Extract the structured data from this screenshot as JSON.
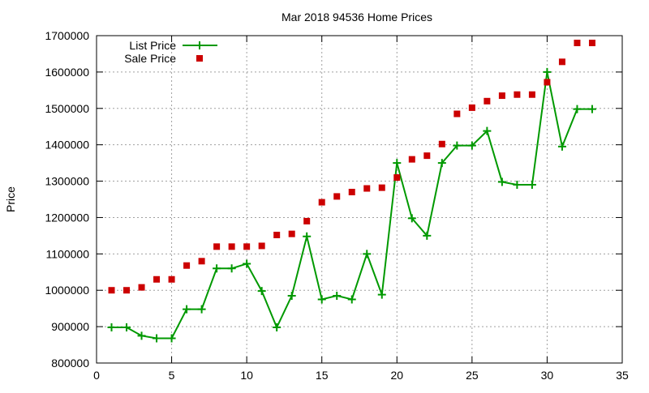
{
  "chart_data": {
    "type": "line",
    "title": "Mar 2018 94536 Home Prices",
    "xlabel": "",
    "ylabel": "Price",
    "xlim": [
      0,
      35
    ],
    "ylim": [
      800000,
      1700000
    ],
    "x_ticks": [
      0,
      5,
      10,
      15,
      20,
      25,
      30,
      35
    ],
    "y_ticks": [
      800000,
      900000,
      1000000,
      1100000,
      1200000,
      1300000,
      1400000,
      1500000,
      1600000,
      1700000
    ],
    "grid": true,
    "legend_position": "top-left",
    "series": [
      {
        "name": "List Price",
        "style": "line-plus",
        "color": "#009900",
        "x": [
          1,
          2,
          3,
          4,
          5,
          6,
          7,
          8,
          9,
          10,
          11,
          12,
          13,
          14,
          15,
          16,
          17,
          18,
          19,
          20,
          21,
          22,
          23,
          24,
          25,
          26,
          27,
          28,
          29,
          30,
          31,
          32,
          33
        ],
        "values": [
          898000,
          898000,
          875000,
          868000,
          868000,
          948000,
          948000,
          1060000,
          1060000,
          1073000,
          998000,
          898000,
          985000,
          1148000,
          975000,
          985000,
          975000,
          1100000,
          988000,
          1350000,
          1198000,
          1150000,
          1350000,
          1398000,
          1398000,
          1438000,
          1298000,
          1290000,
          1290000,
          1600000,
          1395000,
          1498000,
          1498000
        ]
      },
      {
        "name": "Sale Price",
        "style": "points-square",
        "color": "#cc0000",
        "x": [
          1,
          2,
          3,
          4,
          5,
          6,
          7,
          8,
          9,
          10,
          11,
          12,
          13,
          14,
          15,
          16,
          17,
          18,
          19,
          20,
          21,
          22,
          23,
          24,
          25,
          26,
          27,
          28,
          29,
          30,
          31,
          32,
          33
        ],
        "values": [
          1000000,
          1000000,
          1008000,
          1030000,
          1030000,
          1068000,
          1080000,
          1120000,
          1120000,
          1120000,
          1122000,
          1152000,
          1155000,
          1190000,
          1242000,
          1258000,
          1270000,
          1280000,
          1282000,
          1310000,
          1360000,
          1370000,
          1402000,
          1485000,
          1502000,
          1520000,
          1535000,
          1538000,
          1538000,
          1572000,
          1628000,
          1680000,
          1680000
        ]
      }
    ]
  }
}
